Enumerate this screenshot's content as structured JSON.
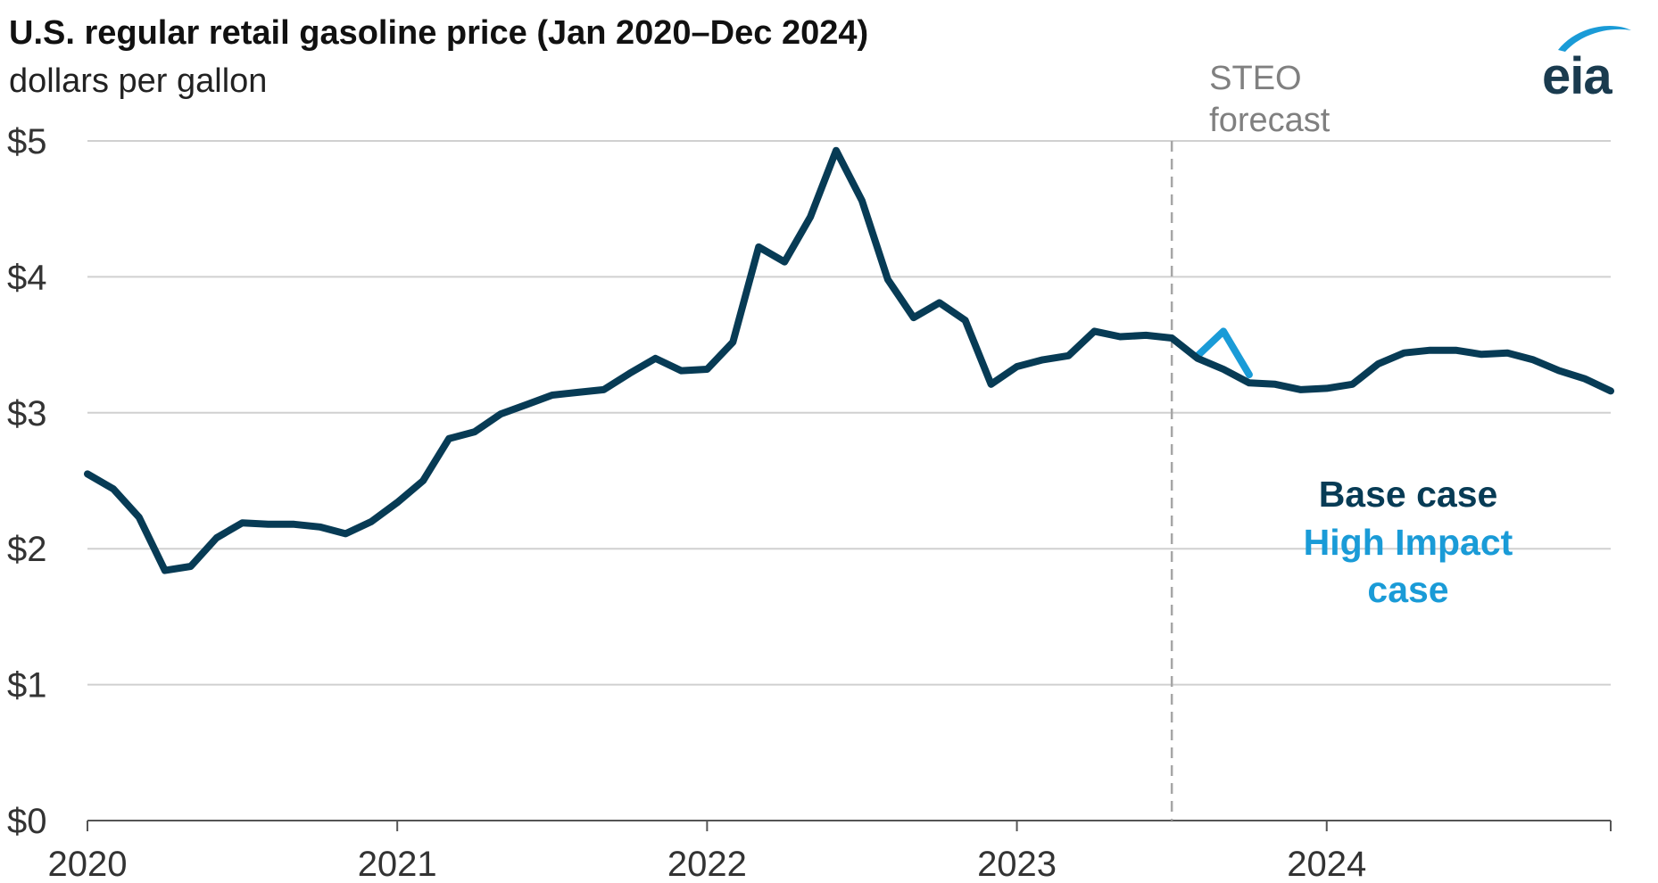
{
  "header": {
    "title": "U.S. regular retail gasoline price (Jan 2020–Dec 2024)",
    "subtitle": "dollars per gallon",
    "logo_text": "eia"
  },
  "colors": {
    "base": "#073b55",
    "high_impact": "#1a9bd7",
    "grid": "#d0d0d0",
    "forecast_line": "#a6a6a6",
    "axis": "#555555"
  },
  "chart_data": {
    "type": "line",
    "title": "U.S. regular retail gasoline price (Jan 2020–Dec 2024)",
    "ylabel": "dollars per gallon",
    "xlabel": "",
    "ylim": [
      0,
      5
    ],
    "y_ticks": [
      0,
      1,
      2,
      3,
      4,
      5
    ],
    "y_tick_labels": [
      "$0",
      "$1",
      "$2",
      "$3",
      "$4",
      "$5"
    ],
    "x_tick_labels": [
      "2020",
      "2021",
      "2022",
      "2023",
      "2024"
    ],
    "x_range": [
      "2020-01",
      "2024-12"
    ],
    "grid": true,
    "forecast_start": "2023-07",
    "forecast_label": [
      "STEO",
      "forecast"
    ],
    "legend": {
      "placement": "right",
      "entries": [
        {
          "label": "Base case",
          "series": "Base case"
        },
        {
          "label_lines": [
            "High Impact",
            "case"
          ],
          "series": "High Impact case"
        }
      ]
    },
    "series": [
      {
        "name": "Base case",
        "color": "#073b55",
        "x": [
          "2020-01",
          "2020-02",
          "2020-03",
          "2020-04",
          "2020-05",
          "2020-06",
          "2020-07",
          "2020-08",
          "2020-09",
          "2020-10",
          "2020-11",
          "2020-12",
          "2021-01",
          "2021-02",
          "2021-03",
          "2021-04",
          "2021-05",
          "2021-06",
          "2021-07",
          "2021-08",
          "2021-09",
          "2021-10",
          "2021-11",
          "2021-12",
          "2022-01",
          "2022-02",
          "2022-03",
          "2022-04",
          "2022-05",
          "2022-06",
          "2022-07",
          "2022-08",
          "2022-09",
          "2022-10",
          "2022-11",
          "2022-12",
          "2023-01",
          "2023-02",
          "2023-03",
          "2023-04",
          "2023-05",
          "2023-06",
          "2023-07",
          "2023-08",
          "2023-09",
          "2023-10",
          "2023-11",
          "2023-12",
          "2024-01",
          "2024-02",
          "2024-03",
          "2024-04",
          "2024-05",
          "2024-06",
          "2024-07",
          "2024-08",
          "2024-09",
          "2024-10",
          "2024-11",
          "2024-12"
        ],
        "values": [
          2.55,
          2.44,
          2.23,
          1.84,
          1.87,
          2.08,
          2.19,
          2.18,
          2.18,
          2.16,
          2.11,
          2.2,
          2.34,
          2.5,
          2.81,
          2.86,
          2.99,
          3.06,
          3.13,
          3.15,
          3.17,
          3.29,
          3.4,
          3.31,
          3.32,
          3.52,
          4.22,
          4.11,
          4.44,
          4.93,
          4.56,
          3.98,
          3.7,
          3.81,
          3.68,
          3.21,
          3.34,
          3.39,
          3.42,
          3.6,
          3.56,
          3.57,
          3.55,
          3.4,
          3.32,
          3.22,
          3.21,
          3.17,
          3.18,
          3.21,
          3.36,
          3.44,
          3.46,
          3.46,
          3.43,
          3.44,
          3.39,
          3.31,
          3.25,
          3.16
        ]
      },
      {
        "name": "High Impact case",
        "color": "#1a9bd7",
        "x": [
          "2023-08",
          "2023-09",
          "2023-10"
        ],
        "values": [
          3.42,
          3.6,
          3.28
        ]
      }
    ]
  }
}
